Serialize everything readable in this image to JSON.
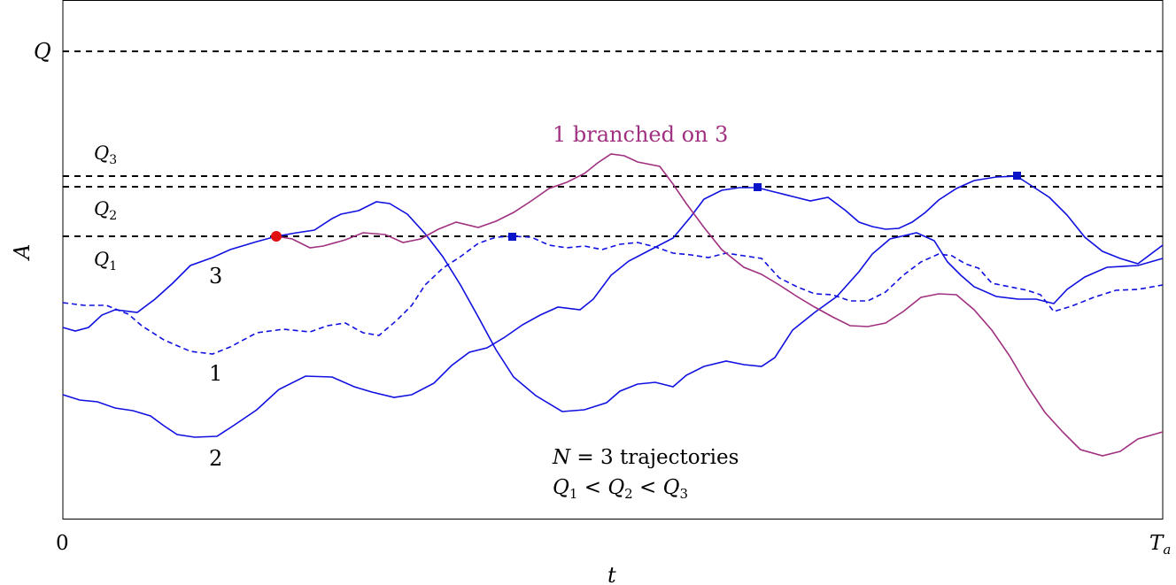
{
  "axes": {
    "x_label": "t",
    "y_label": "A",
    "x_tick_start": "0",
    "x_tick_end_base": "T",
    "x_tick_end_sub": "a"
  },
  "thresholds": {
    "q_label": "Q",
    "q3_base": "Q",
    "q3_sub": "3",
    "q2_base": "Q",
    "q2_sub": "2",
    "q1_base": "Q",
    "q1_sub": "1"
  },
  "trajectory_labels": {
    "t1": "1",
    "t2": "2",
    "t3": "3",
    "branched": "1 branched on 3"
  },
  "annotation": {
    "n_var": "N",
    "n_rest": " = 3 trajectories",
    "ineq_q": "Q",
    "ineq_1": "1",
    "ineq_2": "2",
    "ineq_3": "3",
    "lt": " < "
  },
  "colors": {
    "trajectory": "#1010e0",
    "branch": "#a03080",
    "branch_point": "#e01010",
    "max_marker": "#0a14c8",
    "threshold": "#000000"
  }
}
